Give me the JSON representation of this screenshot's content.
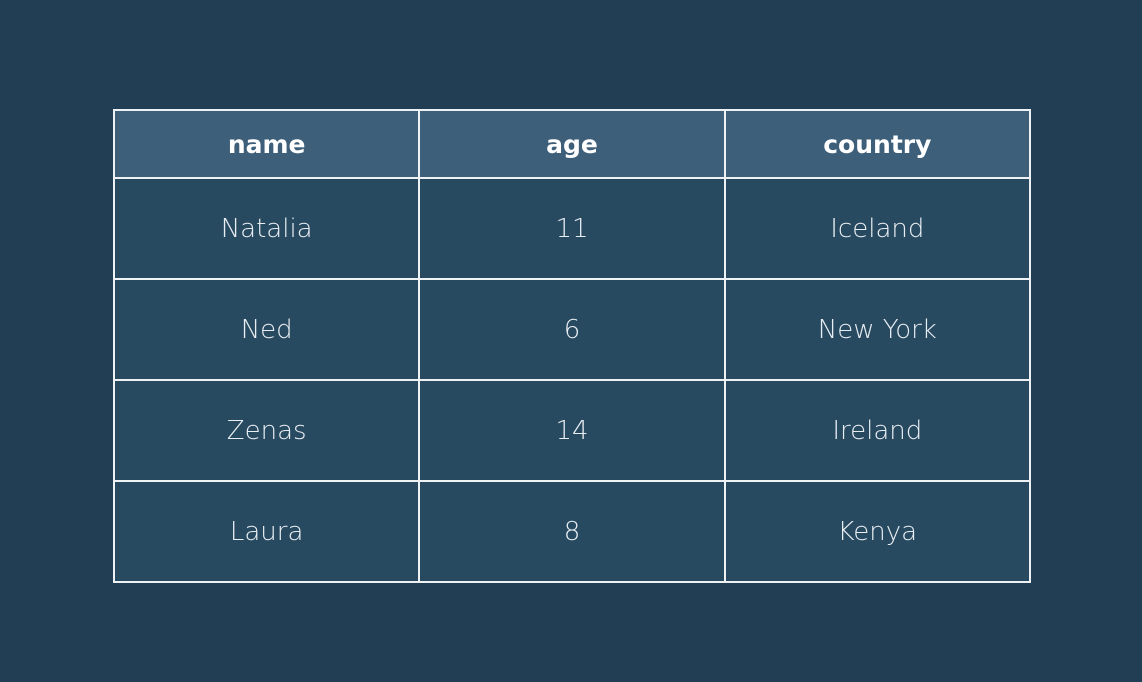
{
  "chart_data": {
    "type": "table",
    "columns": [
      "name",
      "age",
      "country"
    ],
    "rows": [
      [
        "Natalia",
        "11",
        "Iceland"
      ],
      [
        "Ned",
        "6",
        "New York"
      ],
      [
        "Zenas",
        "14",
        "Ireland"
      ],
      [
        "Laura",
        "8",
        "Kenya"
      ]
    ]
  },
  "colors": {
    "background": "#213e55",
    "header_fill": "#3e5f7a",
    "cell_fill": "#284a61",
    "grid_line": "#eef2f5",
    "text": "#e9eef2"
  }
}
